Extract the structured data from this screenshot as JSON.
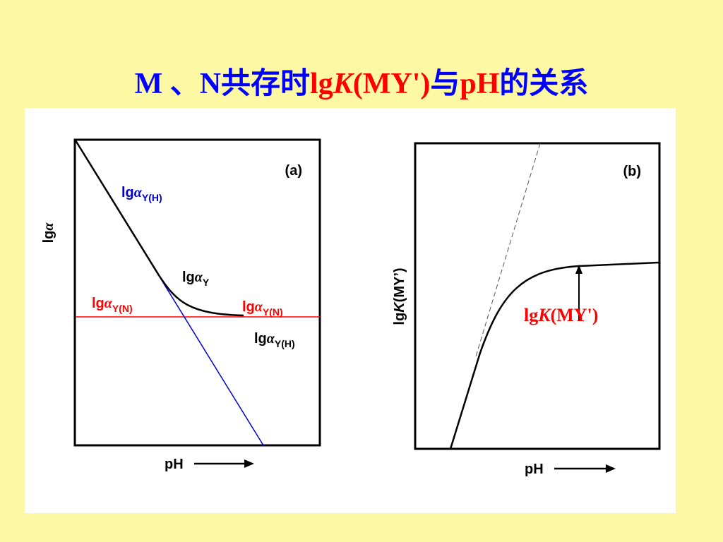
{
  "header": {
    "title": {
      "parts": [
        "M 、N共存时",
        "lg",
        "K",
        "(MY')",
        "与",
        "pH",
        "的关系"
      ]
    }
  },
  "panel_a": {
    "tag": "(a)",
    "y_label": {
      "lg": "lg",
      "symbol": "α"
    },
    "x_label": "pH",
    "labels": [
      {
        "lg": "lg",
        "symbol": "α",
        "sub": "Y(H)"
      },
      {
        "lg": "lg",
        "symbol": "α",
        "sub": "Y"
      },
      {
        "lg": "lg",
        "symbol": "α",
        "sub": "Y(N)"
      },
      {
        "lg": "lg",
        "symbol": "α",
        "sub": "Y(N)"
      },
      {
        "lg": "lg",
        "symbol": "α",
        "sub": "Y(H)"
      }
    ]
  },
  "panel_b": {
    "tag": "(b)",
    "y_label": {
      "lg": "lg",
      "italic": "K",
      "rest": "(MY’)"
    },
    "x_label": "pH",
    "annotation": {
      "lg": "lg",
      "italic": "K",
      "rest": "(MY')"
    }
  }
}
